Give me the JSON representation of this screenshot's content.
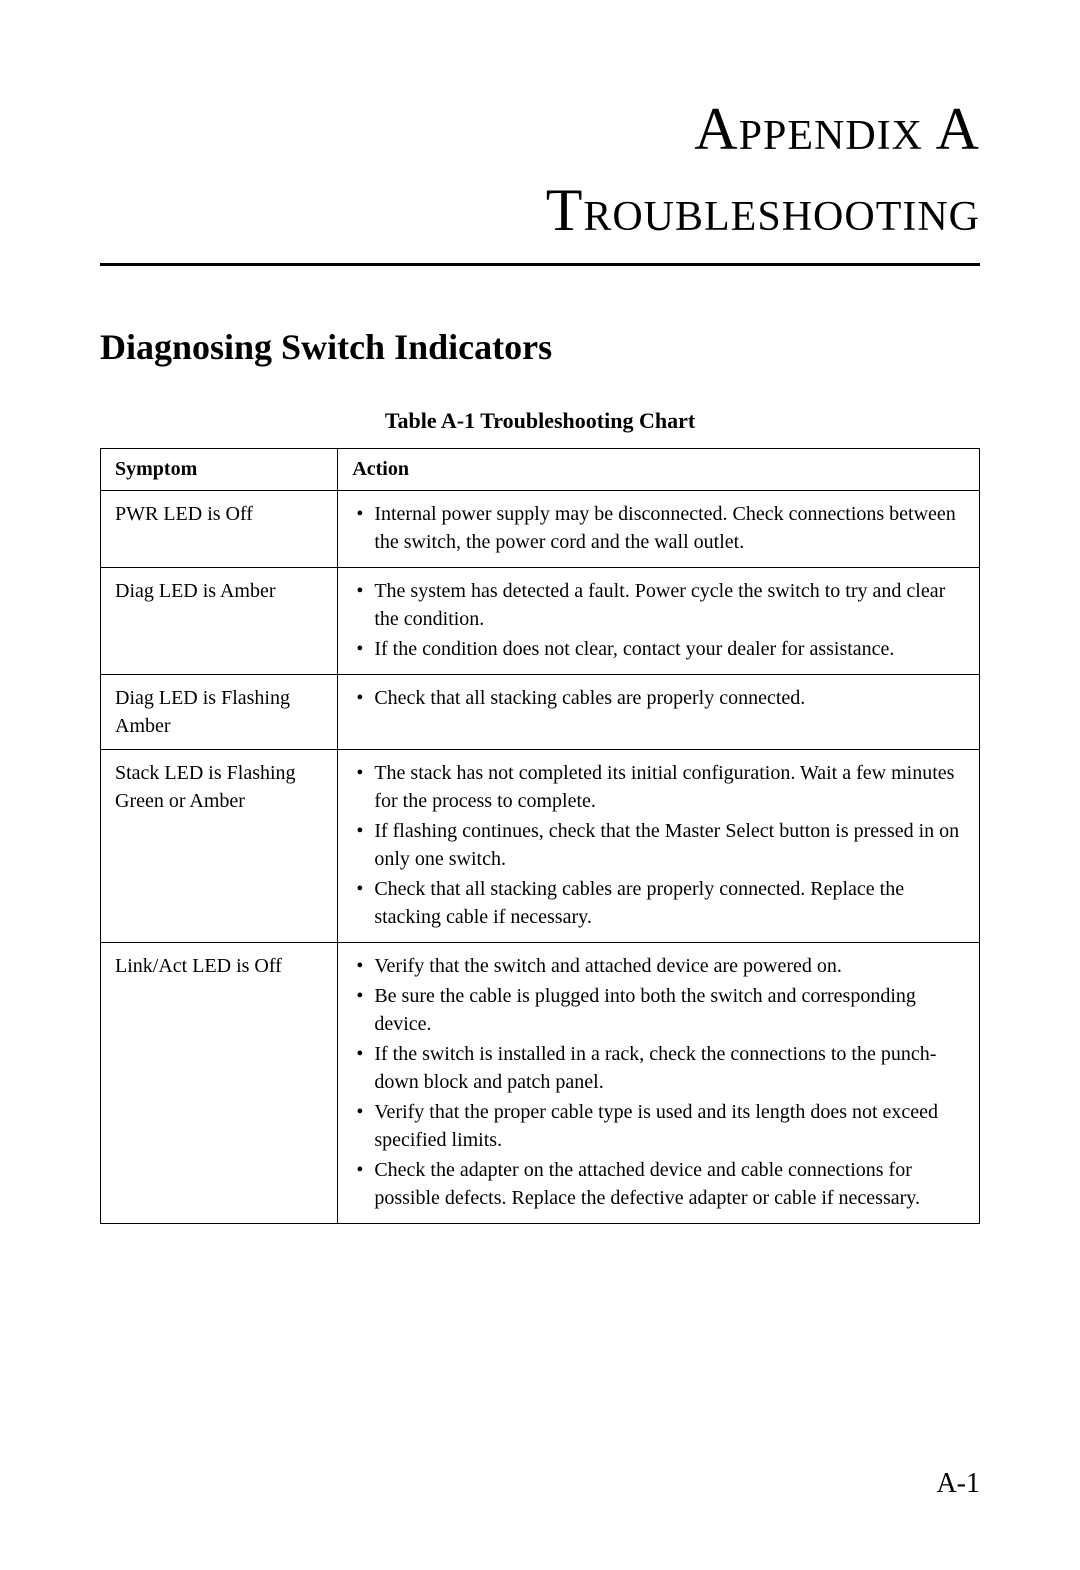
{
  "header": {
    "appendix_label": "Appendix A",
    "title": "Troubleshooting"
  },
  "section": {
    "heading": "Diagnosing Switch Indicators"
  },
  "table": {
    "title": "Table A-1  Troubleshooting Chart",
    "columns": {
      "symptom": "Symptom",
      "action": "Action"
    },
    "rows": [
      {
        "symptom": "PWR LED is Off",
        "actions": [
          "Internal power supply may be disconnected. Check connections between the switch, the power cord and the wall outlet."
        ]
      },
      {
        "symptom": "Diag LED is Amber",
        "actions": [
          "The system has detected a fault. Power cycle the switch to try and clear the condition.",
          "If the condition does not clear, contact your dealer for assistance."
        ]
      },
      {
        "symptom": "Diag LED is Flashing Amber",
        "actions": [
          "Check that all stacking cables are properly connected."
        ]
      },
      {
        "symptom": "Stack LED is Flashing Green or Amber",
        "actions": [
          "The stack has not completed its initial configuration. Wait a few minutes for the process to complete.",
          "If flashing continues, check that the Master Select button is pressed in on only one switch.",
          "Check that all stacking cables are properly connected. Replace the stacking cable if necessary."
        ]
      },
      {
        "symptom": "Link/Act LED is Off",
        "actions": [
          "Verify that the switch and attached device are powered on.",
          "Be sure the cable is plugged into both the switch and corresponding device.",
          "If the switch is installed in a rack, check the connections to the punch-down block and patch panel.",
          "Verify that the proper cable type is used and its length does not exceed specified limits.",
          "Check the adapter on the attached device and cable connections for possible defects. Replace the defective adapter or cable if necessary."
        ]
      }
    ]
  },
  "page_number": "A-1"
}
